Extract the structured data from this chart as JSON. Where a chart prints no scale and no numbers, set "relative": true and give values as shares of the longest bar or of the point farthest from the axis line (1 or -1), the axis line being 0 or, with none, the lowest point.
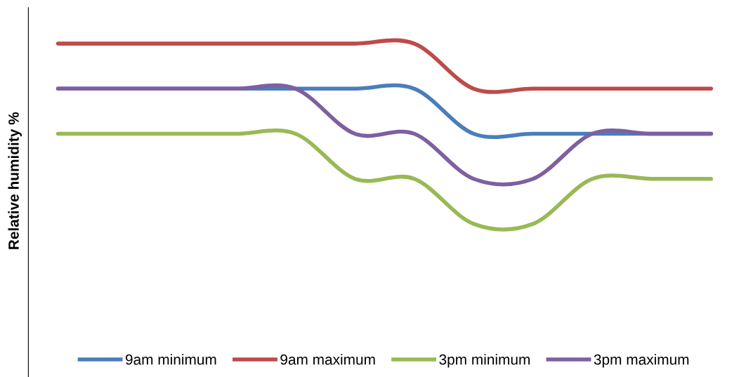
{
  "chart_data": {
    "type": "line",
    "relative": true,
    "ylabel": "Relative humidity %",
    "categories": [
      null,
      null,
      null,
      null,
      null,
      null,
      null,
      null,
      null,
      null,
      null,
      null
    ],
    "series": [
      {
        "name": "9am minimum",
        "color": "#4a7ebb",
        "values": [
          0.75,
          0.75,
          0.75,
          0.75,
          0.75,
          0.75,
          0.75,
          0.5,
          0.5,
          0.5,
          0.5,
          0.5
        ]
      },
      {
        "name": "9am maximum",
        "color": "#be4b48",
        "values": [
          1,
          1,
          1,
          1,
          1,
          1,
          1,
          0.75,
          0.75,
          0.75,
          0.75,
          0.75
        ]
      },
      {
        "name": "3pm minimum",
        "color": "#98b954",
        "values": [
          0.5,
          0.5,
          0.5,
          0.5,
          0.5,
          0.25,
          0.25,
          0,
          0,
          0.25,
          0.25,
          0.25
        ]
      },
      {
        "name": "3pm maximum",
        "color": "#7d60a0",
        "values": [
          0.75,
          0.75,
          0.75,
          0.75,
          0.75,
          0.5,
          0.5,
          0.25,
          0.25,
          0.5,
          0.5,
          0.5
        ]
      }
    ],
    "grid": false,
    "legend": "bottom",
    "marker": "none",
    "line_style": "solid"
  }
}
